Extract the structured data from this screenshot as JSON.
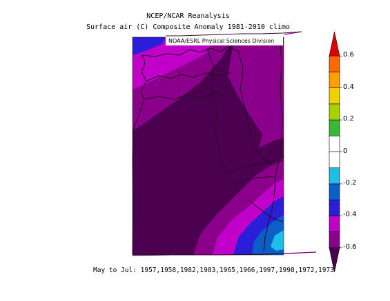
{
  "figure": {
    "title_line1": "NCEP/NCAR Reanalysis",
    "title_line2": "Surface air (C) Composite Anomaly 1981-2010 climo",
    "credit": "NOAA/ESRL Physical Sciences Division",
    "footer": "May to Jul: 1957,1958,1982,1983,1965,1966,1997,1998,1972,1973"
  },
  "colorbar": {
    "labels": [
      "0.6",
      "0.4",
      "0.2",
      "0",
      "-0.2",
      "-0.4",
      "-0.6"
    ],
    "bins": [
      {
        "color": "#4b0050"
      },
      {
        "color": "#8a008a"
      },
      {
        "color": "#c000c8"
      },
      {
        "color": "#2a1ed8"
      },
      {
        "color": "#0a60c8"
      },
      {
        "color": "#1ebee6"
      },
      {
        "color": "#ffffff"
      },
      {
        "color": "#ffffff"
      },
      {
        "color": "#3ab83a"
      },
      {
        "color": "#a8d200"
      },
      {
        "color": "#f0d200"
      },
      {
        "color": "#ffa000"
      },
      {
        "color": "#ff6a00"
      },
      {
        "color": "#e00000"
      }
    ]
  },
  "map": {
    "colors": {
      "lt_m06": "#4b0050",
      "m06_m05": "#8a008a",
      "m05_m04": "#c000c8",
      "m04_m03": "#2a1ed8",
      "m03_m02": "#0a60c8",
      "m02_m01": "#1ebee6"
    }
  }
}
